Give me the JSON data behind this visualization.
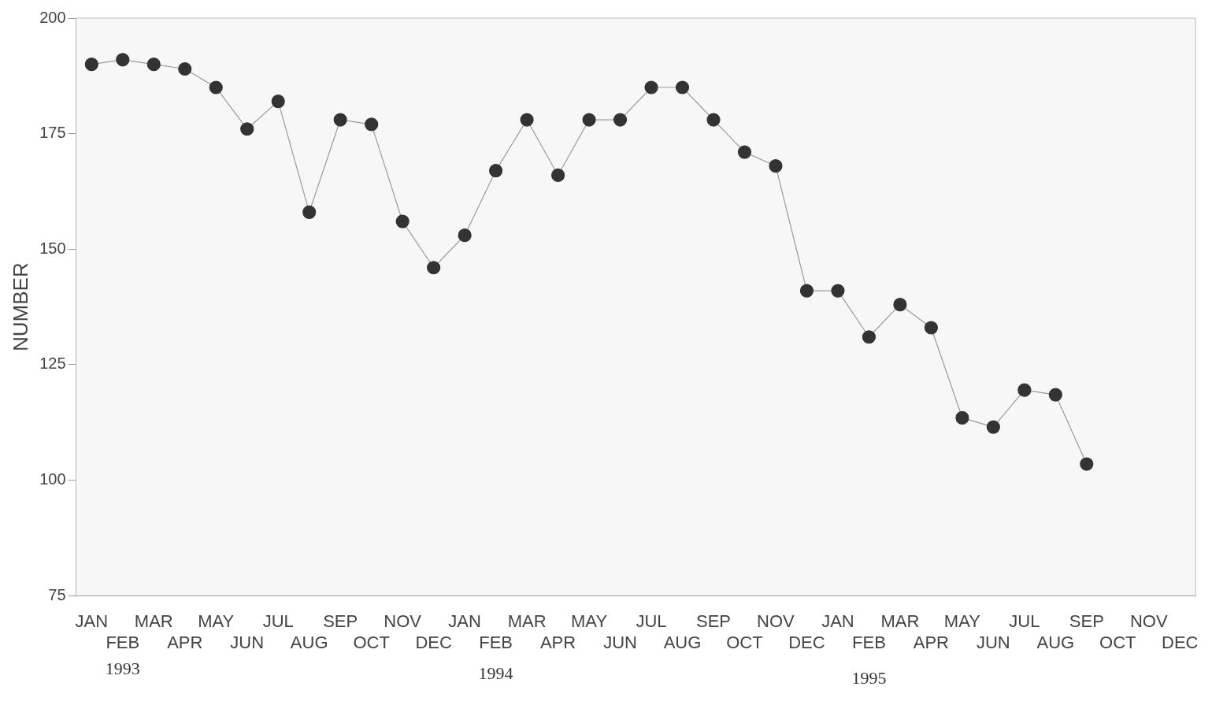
{
  "chart_data": {
    "type": "line",
    "ylabel": "NUMBER",
    "categories": [
      "JAN",
      "FEB",
      "MAR",
      "APR",
      "MAY",
      "JUN",
      "JUL",
      "AUG",
      "SEP",
      "OCT",
      "NOV",
      "DEC",
      "JAN",
      "FEB",
      "MAR",
      "APR",
      "MAY",
      "JUN",
      "JUL",
      "AUG",
      "SEP",
      "OCT",
      "NOV",
      "DEC",
      "JAN",
      "FEB",
      "MAR",
      "APR",
      "MAY",
      "JUN",
      "JUL",
      "AUG",
      "SEP",
      "OCT",
      "NOV",
      "DEC"
    ],
    "series": [
      {
        "color": "#333333",
        "values": [
          190,
          191,
          190,
          189,
          185,
          176,
          182,
          158,
          178,
          177,
          156,
          146,
          153,
          167,
          178,
          166,
          178,
          178,
          185,
          185,
          178,
          171,
          168,
          141,
          141,
          131,
          138,
          133,
          113.5,
          111.5,
          119.5,
          118.5,
          103.5,
          null,
          null,
          null
        ]
      }
    ],
    "ylim": [
      75,
      200
    ],
    "yticks": [
      75,
      100,
      125,
      150,
      175,
      200
    ],
    "grid": false,
    "legend": false,
    "marker": "circle",
    "line_style": "solid",
    "annotations": [
      "1993",
      "1994",
      "1995"
    ]
  }
}
